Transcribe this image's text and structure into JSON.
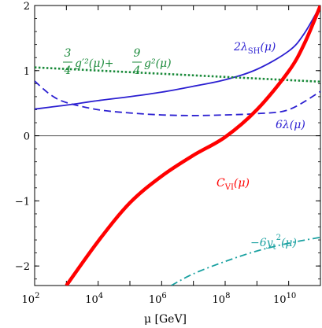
{
  "chart_data": {
    "type": "line",
    "title": "",
    "xlabel": "μ [GeV]",
    "ylabel": "",
    "x_scale": "log",
    "xlim": [
      100,
      100000000000.0
    ],
    "ylim": [
      -2.3,
      2.0
    ],
    "x_ticks": [
      {
        "value": 100,
        "base": "10",
        "exp": "2"
      },
      {
        "value": 10000,
        "base": "10",
        "exp": "4"
      },
      {
        "value": 1000000,
        "base": "10",
        "exp": "6"
      },
      {
        "value": 100000000,
        "base": "10",
        "exp": "8"
      },
      {
        "value": 10000000000,
        "base": "10",
        "exp": "10"
      }
    ],
    "y_ticks": [
      {
        "value": -2,
        "label": "−2"
      },
      {
        "value": -1,
        "label": "−1"
      },
      {
        "value": 0,
        "label": "0"
      },
      {
        "value": 1,
        "label": "1"
      },
      {
        "value": 2,
        "label": "2"
      }
    ],
    "grid": false,
    "zero_line": true,
    "series": [
      {
        "key": "lambda_sh",
        "color": "#2b1fd1",
        "dash": "solid",
        "width": 1.8,
        "x": [
          100,
          1000,
          10000,
          100000,
          1000000,
          10000000,
          100000000,
          1000000000,
          10000000000,
          30000000000,
          100000000000
        ],
        "y": [
          0.41,
          0.47,
          0.54,
          0.6,
          0.67,
          0.76,
          0.86,
          1.02,
          1.3,
          1.56,
          2.0
        ]
      },
      {
        "key": "lambda",
        "color": "#2b1fd1",
        "dash": "dashed",
        "width": 1.8,
        "x": [
          100,
          316,
          1000,
          10000,
          100000,
          1000000,
          10000000,
          100000000,
          1000000000,
          10000000000,
          100000000000
        ],
        "y": [
          0.84,
          0.63,
          0.51,
          0.4,
          0.35,
          0.32,
          0.31,
          0.32,
          0.34,
          0.4,
          0.68
        ]
      },
      {
        "key": "gauge",
        "color": "#1a8a3a",
        "dash": "dotted",
        "width": 2.6,
        "x": [
          100,
          100000000000
        ],
        "y": [
          1.05,
          0.83
        ]
      },
      {
        "key": "c_vi",
        "color": "#ff0000",
        "dash": "solid",
        "width": 4.5,
        "x": [
          1000,
          10000,
          100000,
          1000000,
          10000000,
          100000000,
          1000000000,
          10000000000,
          31600000000,
          100000000000
        ],
        "y": [
          -2.3,
          -1.62,
          -1.03,
          -0.62,
          -0.3,
          -0.02,
          0.4,
          0.99,
          1.42,
          2.0
        ]
      },
      {
        "key": "yt",
        "color": "#1aa1a1",
        "dash": "dashdot",
        "width": 1.8,
        "x": [
          2000000,
          10000000,
          100000000,
          1000000000,
          10000000000,
          100000000000
        ],
        "y": [
          -2.3,
          -2.12,
          -1.93,
          -1.77,
          -1.65,
          -1.56
        ]
      }
    ],
    "annotations": {
      "lambda_sh": {
        "pre": "2λ",
        "sub": "SH",
        "post": "(μ)",
        "color": "#2b1fd1"
      },
      "lambda": {
        "text": "6λ(μ)",
        "color": "#2b1fd1"
      },
      "c_vi": {
        "pre": "C",
        "sub": "VI",
        "post": "(μ)",
        "color": "#ff0000"
      },
      "yt": {
        "text": "−6y",
        "sub": "t",
        "post": "(μ)",
        "sup": "2",
        "color": "#1aa1a1"
      },
      "gauge": {
        "n1": "3",
        "d1": "4",
        "t1": "g′²(μ)+",
        "n2": "9",
        "d2": "4",
        "t2": "g²(μ)",
        "color": "#1a8a3a"
      }
    }
  }
}
